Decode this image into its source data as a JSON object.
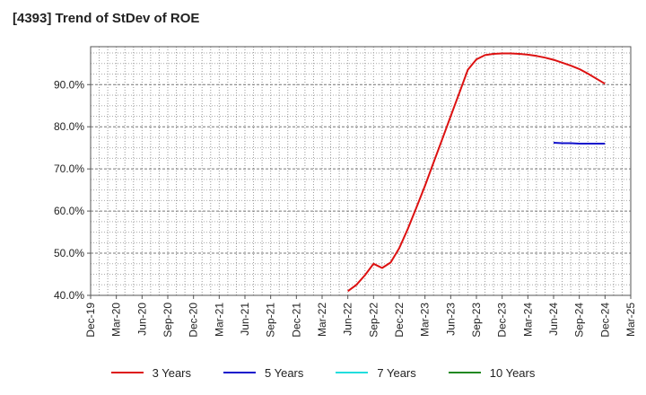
{
  "chart_data": {
    "type": "line",
    "title": "[4393]  Trend of StDev of ROE",
    "xlabel": "",
    "ylabel": "",
    "x_ticks": [
      "Dec-19",
      "Mar-20",
      "Jun-20",
      "Sep-20",
      "Dec-20",
      "Mar-21",
      "Jun-21",
      "Sep-21",
      "Dec-21",
      "Mar-22",
      "Jun-22",
      "Sep-22",
      "Dec-22",
      "Mar-23",
      "Jun-23",
      "Sep-23",
      "Dec-23",
      "Mar-24",
      "Jun-24",
      "Sep-24",
      "Dec-24",
      "Mar-25"
    ],
    "y_ticks": [
      "40.0%",
      "50.0%",
      "60.0%",
      "70.0%",
      "80.0%",
      "90.0%"
    ],
    "ylim": [
      40,
      99
    ],
    "grid": true,
    "legend_position": "bottom",
    "series": [
      {
        "name": "3 Years",
        "color": "#dd1111",
        "x": [
          "Jun-22",
          "Jul-22",
          "Aug-22",
          "Sep-22",
          "Oct-22",
          "Nov-22",
          "Dec-22",
          "Jan-23",
          "Feb-23",
          "Mar-23",
          "Apr-23",
          "May-23",
          "Jun-23",
          "Jul-23",
          "Aug-23",
          "Sep-23",
          "Oct-23",
          "Nov-23",
          "Dec-23",
          "Jan-24",
          "Feb-24",
          "Mar-24",
          "Apr-24",
          "May-24",
          "Jun-24",
          "Jul-24",
          "Aug-24",
          "Sep-24",
          "Oct-24",
          "Nov-24",
          "Dec-24"
        ],
        "values": [
          41.0,
          42.5,
          44.8,
          47.5,
          46.5,
          47.8,
          51.2,
          55.8,
          60.8,
          66.0,
          71.5,
          77.0,
          82.5,
          88.0,
          93.5,
          96.0,
          97.0,
          97.3,
          97.4,
          97.4,
          97.3,
          97.1,
          96.8,
          96.4,
          95.9,
          95.2,
          94.5,
          93.7,
          92.6,
          91.4,
          90.2
        ]
      },
      {
        "name": "5 Years",
        "color": "#1111cc",
        "x": [
          "Jun-24",
          "Jul-24",
          "Aug-24",
          "Sep-24",
          "Oct-24",
          "Nov-24",
          "Dec-24"
        ],
        "values": [
          76.2,
          76.1,
          76.1,
          76.0,
          76.0,
          76.0,
          76.0
        ]
      },
      {
        "name": "7 Years",
        "color": "#22dddd",
        "x": [],
        "values": []
      },
      {
        "name": "10 Years",
        "color": "#228822",
        "x": [],
        "values": []
      }
    ]
  }
}
